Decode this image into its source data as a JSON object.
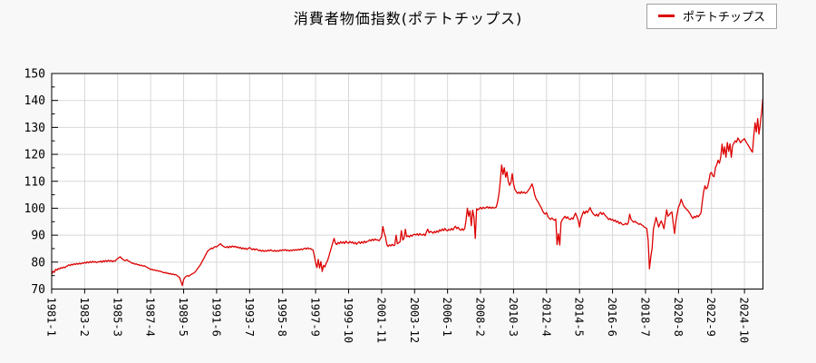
{
  "title": "消費者物価指数(ポテトチップス)",
  "legend": {
    "label": "ポテトチップス",
    "line_color": "#dd0000"
  },
  "colors": {
    "line": "#dd0000",
    "grid": "#d8d8d8",
    "axis": "#000000",
    "page_background": "#f8f8f8",
    "plot_background": "#ffffff",
    "tick_label": "#000000"
  },
  "chart_data": {
    "type": "line",
    "title": "消費者物価指数(ポテトチップス)",
    "series_name": "ポテトチップス",
    "x_start": "1981-1",
    "x_end": "2025-12",
    "x_tick_every": 25,
    "x_tick_labels": [
      "1981-1",
      "1983-2",
      "1985-3",
      "1987-4",
      "1989-5",
      "1991-6",
      "1993-7",
      "1995-8",
      "1997-9",
      "1999-10",
      "2001-11",
      "2003-12",
      "2006-1",
      "2008-2",
      "2010-3",
      "2012-4",
      "2014-5",
      "2016-6",
      "2018-7",
      "2020-8",
      "2022-9",
      "2024-10"
    ],
    "ylim": [
      70,
      150
    ],
    "y_major_step": 10,
    "y_minor_step": 5,
    "grid": true,
    "legend_position": "top-right",
    "values": [
      75.5,
      76.6,
      76.2,
      77.3,
      77.0,
      77.6,
      77.4,
      78.0,
      77.7,
      78.2,
      77.9,
      78.4,
      78.6,
      79.0,
      78.7,
      79.2,
      78.9,
      79.4,
      79.1,
      79.5,
      79.2,
      79.6,
      79.3,
      79.7,
      79.5,
      79.9,
      79.6,
      80.1,
      79.7,
      80.2,
      79.8,
      80.3,
      79.9,
      80.2,
      79.8,
      80.1,
      80.0,
      80.4,
      79.9,
      80.5,
      80.1,
      80.6,
      80.2,
      80.7,
      80.3,
      80.6,
      80.1,
      80.5,
      80.3,
      80.9,
      81.3,
      81.7,
      82.0,
      81.4,
      81.0,
      80.6,
      80.5,
      80.9,
      80.4,
      80.2,
      79.9,
      79.5,
      79.6,
      79.2,
      79.4,
      79.0,
      79.1,
      78.7,
      78.9,
      78.5,
      78.7,
      78.4,
      78.2,
      77.8,
      77.6,
      77.2,
      77.4,
      77.0,
      77.1,
      76.8,
      76.9,
      76.6,
      76.7,
      76.4,
      76.3,
      76.0,
      76.2,
      75.8,
      76.0,
      75.6,
      75.8,
      75.4,
      75.6,
      75.3,
      75.4,
      75.0,
      74.6,
      74.2,
      72.8,
      71.3,
      73.5,
      74.3,
      74.8,
      75.0,
      74.7,
      75.2,
      75.5,
      75.8,
      76.0,
      76.5,
      77.2,
      77.9,
      78.5,
      79.3,
      80.2,
      81.1,
      82.0,
      83.0,
      83.9,
      84.5,
      84.8,
      85.2,
      85.0,
      85.5,
      85.8,
      85.6,
      86.1,
      86.4,
      86.8,
      86.2,
      85.9,
      85.6,
      85.4,
      85.8,
      85.3,
      85.9,
      85.5,
      86.0,
      85.6,
      85.9,
      85.4,
      85.7,
      85.2,
      85.5,
      84.9,
      85.3,
      84.8,
      85.2,
      84.7,
      85.1,
      85.4,
      85.0,
      84.6,
      85.0,
      84.5,
      84.9,
      84.6,
      84.2,
      84.5,
      84.0,
      84.4,
      83.9,
      84.3,
      84.0,
      84.5,
      84.1,
      84.6,
      84.2,
      84.0,
      84.4,
      83.9,
      84.3,
      84.0,
      84.5,
      84.2,
      84.6,
      84.3,
      84.7,
      84.2,
      84.5,
      84.1,
      84.5,
      84.2,
      84.6,
      84.3,
      84.7,
      84.4,
      84.8,
      84.5,
      84.9,
      84.6,
      85.0,
      85.2,
      84.8,
      85.3,
      84.9,
      85.1,
      84.7,
      84.6,
      82.5,
      79.8,
      78.0,
      81.0,
      77.8,
      80.2,
      76.5,
      78.8,
      78.2,
      79.5,
      80.5,
      82.0,
      83.8,
      85.5,
      87.2,
      88.8,
      87.0,
      86.5,
      87.3,
      86.8,
      87.6,
      87.0,
      87.5,
      86.9,
      87.8,
      87.2,
      87.0,
      87.7,
      87.1,
      87.5,
      86.8,
      87.3,
      86.6,
      87.2,
      87.5,
      86.9,
      87.6,
      87.0,
      87.8,
      87.2,
      87.7,
      87.8,
      88.3,
      87.9,
      88.5,
      88.0,
      88.6,
      88.2,
      88.3,
      87.9,
      88.6,
      89.4,
      93.2,
      90.8,
      89.3,
      86.5,
      85.8,
      86.4,
      86.0,
      86.6,
      86.1,
      86.3,
      90.0,
      86.8,
      87.2,
      87.5,
      91.7,
      88.2,
      88.8,
      92.2,
      89.4,
      89.8,
      89.3,
      90.0,
      89.6,
      90.2,
      90.3,
      90.0,
      90.5,
      89.9,
      90.6,
      90.1,
      90.0,
      90.4,
      89.8,
      91.3,
      92.2,
      90.9,
      91.4,
      91.2,
      90.7,
      91.4,
      90.9,
      91.6,
      91.1,
      92.0,
      91.5,
      92.3,
      91.7,
      92.5,
      91.8,
      91.6,
      92.2,
      91.8,
      92.5,
      91.9,
      92.7,
      93.3,
      92.4,
      92.9,
      92.2,
      91.8,
      92.4,
      91.8,
      92.5,
      95.5,
      100.0,
      97.0,
      99.0,
      93.5,
      99.3,
      96.5,
      88.8,
      99.8,
      99.4,
      99.8,
      100.3,
      99.7,
      100.4,
      99.9,
      100.2,
      100.6,
      100.0,
      100.5,
      99.9,
      100.4,
      100.0,
      100.2,
      100.5,
      102.5,
      105.5,
      110.5,
      116.0,
      112.5,
      115.0,
      111.5,
      113.5,
      110.0,
      108.5,
      109.5,
      112.8,
      109.0,
      107.0,
      106.2,
      105.5,
      106.0,
      105.4,
      106.2,
      105.6,
      106.0,
      105.5,
      105.8,
      106.5,
      107.2,
      108.0,
      109.0,
      107.5,
      105.0,
      103.5,
      102.8,
      102.0,
      101.0,
      100.2,
      99.0,
      98.2,
      97.8,
      98.4,
      96.9,
      96.3,
      95.8,
      96.4,
      95.9,
      95.5,
      96.0,
      86.5,
      90.5,
      86.3,
      94.8,
      95.8,
      96.4,
      97.0,
      96.2,
      96.8,
      96.0,
      95.8,
      96.4,
      95.9,
      97.2,
      98.2,
      96.8,
      95.5,
      93.0,
      96.0,
      97.5,
      98.8,
      98.0,
      99.0,
      98.4,
      99.2,
      100.2,
      99.0,
      98.2,
      97.6,
      97.2,
      97.8,
      97.0,
      98.0,
      98.5,
      97.7,
      98.3,
      97.6,
      97.0,
      96.5,
      95.8,
      96.2,
      95.6,
      95.9,
      95.2,
      95.6,
      94.8,
      95.2,
      94.3,
      94.8,
      94.2,
      93.8,
      94.0,
      94.4,
      93.9,
      94.6,
      97.8,
      95.9,
      95.3,
      94.8,
      95.2,
      94.6,
      94.5,
      94.0,
      94.3,
      93.8,
      93.5,
      93.0,
      92.8,
      92.4,
      88.0,
      77.5,
      82.0,
      85.0,
      92.3,
      94.5,
      96.6,
      94.8,
      93.0,
      94.4,
      95.3,
      93.8,
      92.4,
      96.0,
      99.4,
      97.0,
      97.6,
      98.2,
      98.6,
      94.5,
      90.6,
      95.0,
      98.0,
      100.4,
      101.5,
      103.3,
      102.0,
      100.8,
      100.2,
      99.6,
      99.2,
      98.5,
      97.8,
      96.8,
      96.2,
      97.0,
      96.5,
      97.3,
      96.8,
      97.5,
      98.2,
      102.2,
      106.0,
      108.3,
      107.2,
      107.8,
      110.0,
      112.8,
      113.3,
      112.0,
      111.7,
      115.0,
      116.2,
      117.8,
      116.7,
      118.9,
      123.8,
      120.0,
      122.8,
      118.9,
      124.4,
      121.1,
      123.9,
      118.9,
      123.3,
      124.2,
      125.0,
      124.5,
      126.1,
      125.2,
      124.3,
      125.0,
      125.4,
      125.8,
      124.8,
      124.0,
      123.2,
      122.4,
      121.5,
      120.8,
      126.5,
      131.7,
      128.3,
      133.3,
      127.5,
      131.5,
      135.5,
      140.8
    ]
  }
}
